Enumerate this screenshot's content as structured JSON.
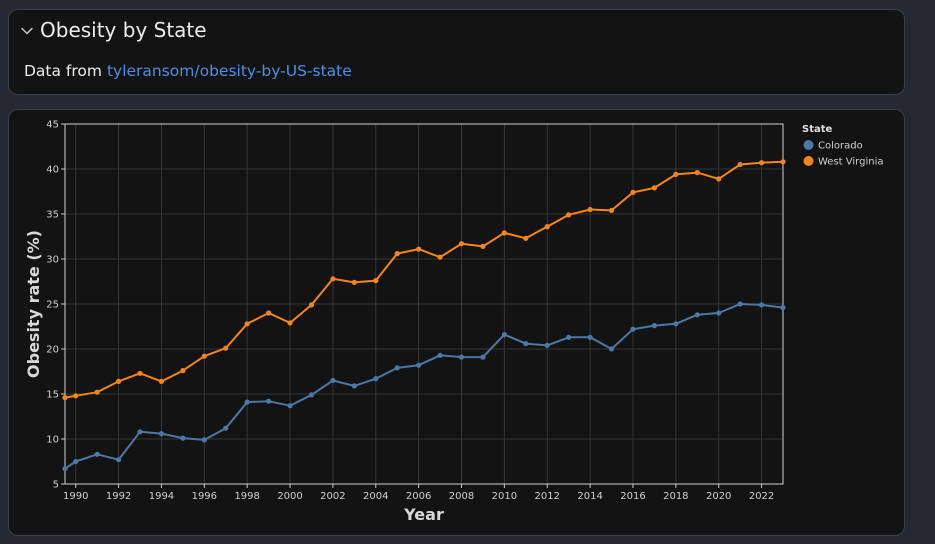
{
  "header": {
    "title": "Obesity by State",
    "subtitle_prefix": "Data from ",
    "link_text": "tyleransom/obesity-by-US-state",
    "chevron_icon": "chevron-down-icon"
  },
  "chart_data": {
    "type": "line",
    "title": "",
    "xlabel": "Year",
    "ylabel": "Obesity rate (%)",
    "xlim": [
      1989.5,
      2023
    ],
    "ylim": [
      5,
      45
    ],
    "x_ticks": [
      1990,
      1992,
      1994,
      1996,
      1998,
      2000,
      2002,
      2004,
      2006,
      2008,
      2010,
      2012,
      2014,
      2016,
      2018,
      2020,
      2022
    ],
    "y_ticks": [
      5,
      10,
      15,
      20,
      25,
      30,
      35,
      40,
      45
    ],
    "grid": true,
    "legend_title": "State",
    "legend_position": "top-right",
    "x": [
      1989.5,
      1990,
      1991,
      1992,
      1993,
      1994,
      1995,
      1996,
      1997,
      1998,
      1999,
      2000,
      2001,
      2002,
      2003,
      2004,
      2005,
      2006,
      2007,
      2008,
      2009,
      2010,
      2011,
      2012,
      2013,
      2014,
      2015,
      2016,
      2017,
      2018,
      2019,
      2020,
      2021,
      2022,
      2023
    ],
    "series": [
      {
        "name": "Colorado",
        "color": "#4c78a8",
        "values": [
          6.7,
          7.5,
          8.3,
          7.7,
          10.8,
          10.6,
          10.1,
          9.9,
          11.2,
          14.1,
          14.2,
          13.7,
          14.9,
          16.5,
          15.9,
          16.7,
          17.9,
          18.2,
          19.3,
          19.1,
          19.1,
          21.6,
          20.6,
          20.4,
          21.3,
          21.3,
          20.0,
          22.2,
          22.6,
          22.8,
          23.8,
          24.0,
          25.0,
          24.9,
          24.6
        ]
      },
      {
        "name": "West Virginia",
        "color": "#f58518",
        "values": [
          14.6,
          14.8,
          15.2,
          16.4,
          17.3,
          16.4,
          17.6,
          19.2,
          20.1,
          22.8,
          24.0,
          22.9,
          24.9,
          27.8,
          27.4,
          27.6,
          30.6,
          31.1,
          30.2,
          31.7,
          31.4,
          32.9,
          32.3,
          33.6,
          34.9,
          35.5,
          35.4,
          37.4,
          37.9,
          39.4,
          39.6,
          38.9,
          40.5,
          40.7,
          40.8
        ]
      }
    ]
  }
}
